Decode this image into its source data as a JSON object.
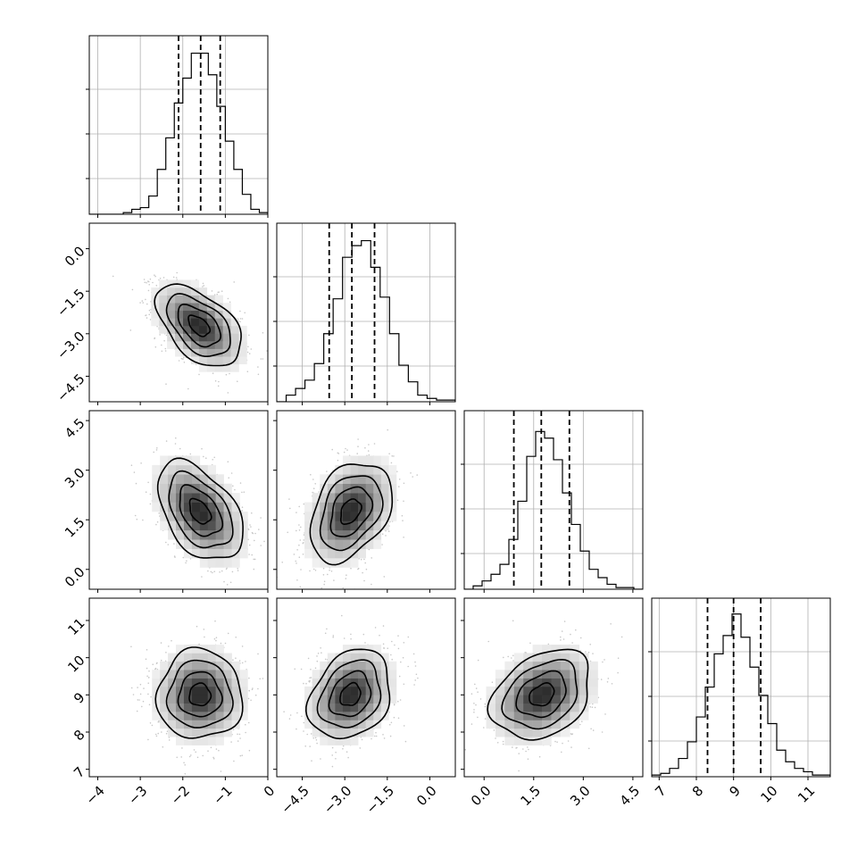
{
  "figure_type": "corner plot",
  "chart_data": {
    "type": "corner",
    "n_params": 4,
    "params": [
      {
        "index": 0,
        "range": [
          -4.2,
          0
        ],
        "ticks": [
          -4,
          -3,
          -2,
          -1,
          0
        ],
        "tick_labels": [
          "−4",
          "−3",
          "−2",
          "−1",
          "0"
        ],
        "quantiles": [
          -2.1,
          -1.58,
          -1.12
        ],
        "hist": [
          0,
          0,
          0,
          0,
          0.01,
          0.03,
          0.04,
          0.11,
          0.27,
          0.46,
          0.67,
          0.82,
          0.97,
          0.97,
          0.84,
          0.65,
          0.44,
          0.27,
          0.12,
          0.03,
          0.01
        ]
      },
      {
        "index": 1,
        "range": [
          -5.4,
          0.9
        ],
        "ticks": [
          -4.5,
          -3.0,
          -1.5,
          0.0
        ],
        "tick_labels": [
          "−4.5",
          "−3.0",
          "−1.5",
          "0.0"
        ],
        "quantiles": [
          -3.55,
          -2.75,
          -1.95
        ],
        "hist": [
          0,
          0.04,
          0.08,
          0.13,
          0.23,
          0.41,
          0.62,
          0.87,
          0.94,
          0.97,
          0.81,
          0.63,
          0.41,
          0.22,
          0.12,
          0.04,
          0.02,
          0.01,
          0.01
        ]
      },
      {
        "index": 2,
        "range": [
          -0.6,
          4.8
        ],
        "ticks": [
          0.0,
          1.5,
          3.0,
          4.5
        ],
        "tick_labels": [
          "0.0",
          "1.5",
          "3.0",
          "4.5"
        ],
        "quantiles": [
          0.9,
          1.73,
          2.58
        ],
        "hist": [
          0,
          0.02,
          0.05,
          0.09,
          0.15,
          0.3,
          0.53,
          0.8,
          0.95,
          0.91,
          0.78,
          0.58,
          0.39,
          0.23,
          0.12,
          0.07,
          0.03,
          0.01,
          0.01,
          0
        ]
      },
      {
        "index": 3,
        "range": [
          6.8,
          11.6
        ],
        "ticks": [
          7,
          8,
          9,
          10,
          11
        ],
        "tick_labels": [
          "7",
          "8",
          "9",
          "10",
          "11"
        ],
        "quantiles": [
          8.3,
          9.0,
          9.73
        ],
        "hist": [
          0.01,
          0.02,
          0.05,
          0.11,
          0.21,
          0.36,
          0.54,
          0.74,
          0.85,
          0.98,
          0.84,
          0.66,
          0.49,
          0.32,
          0.16,
          0.09,
          0.05,
          0.03,
          0.01,
          0.01
        ]
      }
    ],
    "pairs": [
      {
        "row": 1,
        "col": 0,
        "center": [
          -1.62,
          -2.72
        ],
        "sigma": [
          0.5,
          0.72
        ],
        "corr": -0.5
      },
      {
        "row": 2,
        "col": 0,
        "center": [
          -1.6,
          1.75
        ],
        "sigma": [
          0.5,
          0.75
        ],
        "corr": -0.45
      },
      {
        "row": 2,
        "col": 1,
        "center": [
          -2.8,
          1.75
        ],
        "sigma": [
          0.72,
          0.75
        ],
        "corr": 0.35
      },
      {
        "row": 3,
        "col": 0,
        "center": [
          -1.6,
          9.0
        ],
        "sigma": [
          0.5,
          0.6
        ],
        "corr": 0.0
      },
      {
        "row": 3,
        "col": 1,
        "center": [
          -2.8,
          9.0
        ],
        "sigma": [
          0.72,
          0.6
        ],
        "corr": 0.25
      },
      {
        "row": 3,
        "col": 2,
        "center": [
          1.75,
          9.0
        ],
        "sigma": [
          0.75,
          0.6
        ],
        "corr": 0.3
      }
    ],
    "grid": true,
    "quantile_line_style": "dashed"
  }
}
